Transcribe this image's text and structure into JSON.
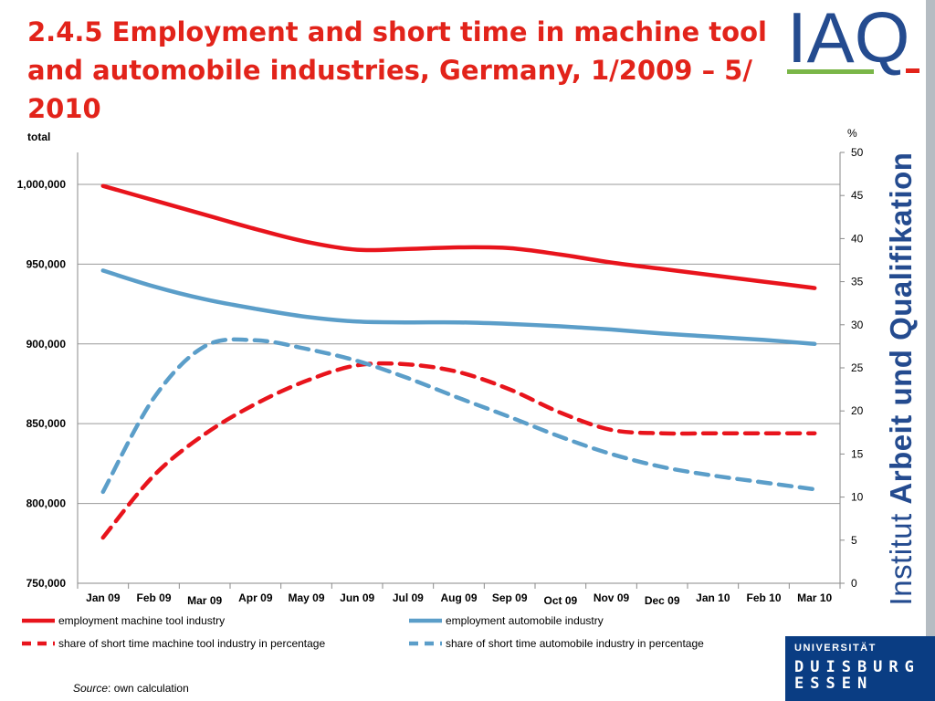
{
  "slide": {
    "title": "2.4.5 Employment and short time in machine tool and automobile industries, Germany, 1/2009 – 5/ 2010",
    "source_label": "Source",
    "source_text": ": own calculation"
  },
  "branding": {
    "logo_text": "IAQ",
    "institute_word": "Institut",
    "institute_rest": "Arbeit und Qualifikation",
    "university_line1": "UNIVERSITÄT",
    "university_line2": "DUISBURG",
    "university_line3": "ESSEN",
    "colors": {
      "title_red": "#e2231a",
      "institute_blue": "#244b8f",
      "university_blue": "#0a3d83",
      "logo_green": "#7ab648"
    }
  },
  "chart_data": {
    "type": "line",
    "left_axis_label": "total",
    "right_axis_label": "%",
    "ylim_left": [
      750000,
      1020000
    ],
    "ylim_right": [
      0,
      50
    ],
    "left_ticks": [
      750000,
      800000,
      850000,
      900000,
      950000,
      1000000
    ],
    "left_tick_labels": [
      "750,000",
      "800,000",
      "850,000",
      "900,000",
      "950,000",
      "1,000,000"
    ],
    "right_ticks": [
      0,
      5,
      10,
      15,
      20,
      25,
      30,
      35,
      40,
      45,
      50
    ],
    "categories": [
      "Jan 09",
      "Feb 09",
      "Mar 09",
      "Apr 09",
      "May 09",
      "Jun 09",
      "Jul 09",
      "Aug 09",
      "Sep 09",
      "Oct 09",
      "Nov 09",
      "Dec 09",
      "Jan 10",
      "Feb 10",
      "Mar 10"
    ],
    "grid": "horizontal",
    "legend_position": "bottom",
    "series": [
      {
        "name": "employment machine tool industry",
        "axis": "left",
        "style": "solid",
        "color": "#e8141c",
        "values": [
          999000,
          990000,
          981000,
          972000,
          964000,
          959000,
          959500,
          960500,
          960000,
          956000,
          951000,
          947000,
          943000,
          939000,
          935000
        ]
      },
      {
        "name": "employment automobile industry",
        "axis": "left",
        "style": "solid",
        "color": "#5b9ec9",
        "values": [
          946000,
          936000,
          928000,
          922000,
          917000,
          914000,
          913500,
          913500,
          912500,
          911000,
          909000,
          906500,
          904500,
          902500,
          900000
        ]
      },
      {
        "name": "share of short time machine tool industry in percentage",
        "axis": "right",
        "style": "dashed",
        "color": "#e8141c",
        "values": [
          5.3,
          12.5,
          17.3,
          20.8,
          23.5,
          25.3,
          25.4,
          24.5,
          22.5,
          19.8,
          17.8,
          17.4,
          17.4,
          17.4,
          17.4
        ]
      },
      {
        "name": "share of short time automobile industry in percentage",
        "axis": "right",
        "style": "dashed",
        "color": "#5b9ec9",
        "values": [
          10.6,
          21.5,
          27.5,
          28.2,
          27.2,
          25.8,
          23.8,
          21.5,
          19.3,
          17.0,
          15.0,
          13.5,
          12.5,
          11.7,
          10.9
        ]
      }
    ]
  }
}
